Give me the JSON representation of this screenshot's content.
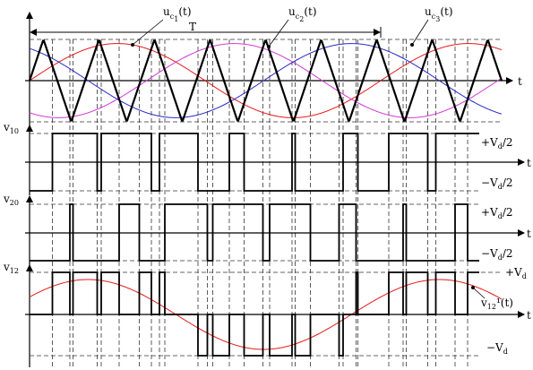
{
  "labels": {
    "uc1": "u",
    "uc1_sub": "c",
    "uc1_sub2": "1",
    "uc1_tail": "(t)",
    "uc2": "u",
    "uc2_sub": "c",
    "uc2_sub2": "2",
    "uc2_tail": "(t)",
    "uc3": "u",
    "uc3_sub": "c",
    "uc3_sub2": "3",
    "uc3_tail": "(t)",
    "period": "T",
    "t": "t",
    "v10": "v",
    "v10_sub": "10",
    "v20": "v",
    "v20_sub": "20",
    "v12": "v",
    "v12_sub": "12",
    "v12_curve": "v",
    "v12_curve_sub": "12",
    "v12_curve_tail": "¹(t)",
    "pos_half": "+V",
    "pos_half_sub": "d",
    "pos_half_tail": "/2",
    "neg_half": "−V",
    "neg_half_sub": "d",
    "neg_half_tail": "/2",
    "pos_full": "+V",
    "pos_full_sub": "d",
    "neg_full": "−V",
    "neg_full_sub": "d"
  },
  "waveform": {
    "carrier_peaks": 9,
    "modulation_index": 0.9,
    "phases_deg": [
      0,
      -120,
      120
    ],
    "colors": {
      "carrier": "#000000",
      "uc1": "#e8191a",
      "uc2": "#d23bd2",
      "uc3": "#2a2ac8",
      "fund": "#e8191a",
      "dash": "#333333"
    }
  }
}
